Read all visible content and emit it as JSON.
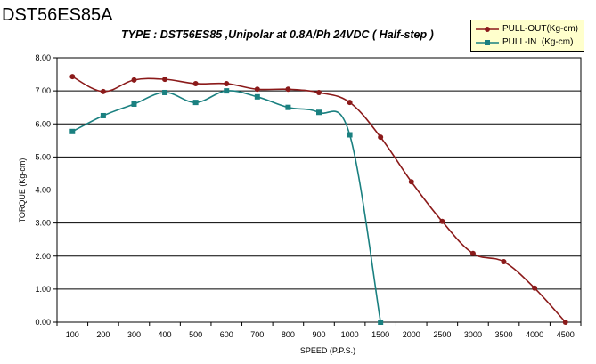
{
  "header": {
    "title": "DST56ES85A"
  },
  "chart_data": {
    "type": "line",
    "title": "DST56ES85A",
    "subtitle": "TYPE : DST56ES85 ,Unipolar at 0.8A/Ph 24VDC ( Half-step )",
    "xlabel": "SPEED (P.P.S.)",
    "ylabel": "TORQUE (Kg-cm)",
    "categories": [
      "100",
      "200",
      "300",
      "400",
      "500",
      "600",
      "700",
      "800",
      "900",
      "1000",
      "1500",
      "2000",
      "2500",
      "3000",
      "3500",
      "4000",
      "4500"
    ],
    "y_ticks": [
      "0.00",
      "1.00",
      "2.00",
      "3.00",
      "4.00",
      "5.00",
      "6.00",
      "7.00",
      "8.00"
    ],
    "ylim": [
      0,
      8
    ],
    "grid": "horizontal",
    "legend_position": "top-right",
    "series": [
      {
        "name": "PULL-OUT(Kg-cm)",
        "color": "#8b1a1a",
        "marker": "circle",
        "values": [
          7.43,
          6.98,
          7.33,
          7.35,
          7.22,
          7.22,
          7.05,
          7.05,
          6.95,
          6.65,
          5.6,
          4.25,
          3.05,
          2.08,
          1.83,
          1.03,
          0.0
        ]
      },
      {
        "name": "PULL-IN  (Kg-cm)",
        "color": "#1a8080",
        "marker": "square",
        "values": [
          5.77,
          6.25,
          6.6,
          6.95,
          6.65,
          7.0,
          6.82,
          6.5,
          6.35,
          5.67,
          0.0,
          null,
          null,
          null,
          null,
          null,
          null
        ]
      }
    ]
  }
}
